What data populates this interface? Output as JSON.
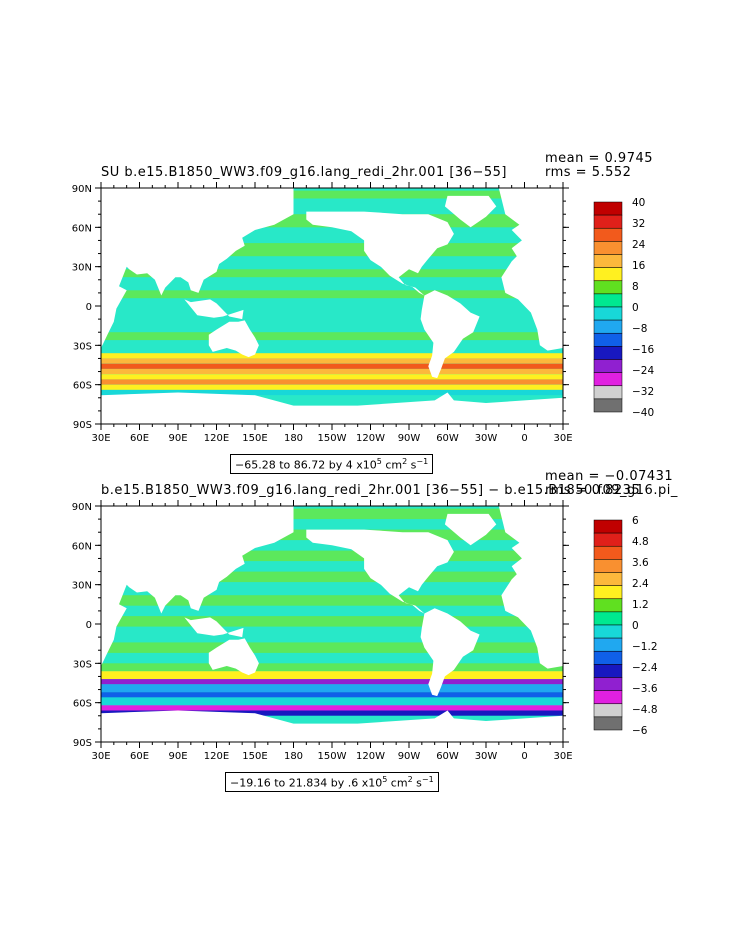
{
  "panels": [
    {
      "id": "top",
      "title": "SU  b.e15.B1850_WW3.f09_g16.lang_redi_2hr.001  [36−55]",
      "mean_label": "mean = 0.9745",
      "rms_label": "rms = 5.552",
      "contour_note": "−65.28 to 86.72 by 4 x10",
      "contour_units": " cm",
      "contour_tail": " s",
      "colorbar_labels": [
        "40",
        "32",
        "24",
        "16",
        "8",
        "0",
        "−8",
        "−16",
        "−24",
        "−32",
        "−40"
      ],
      "colors": [
        "#c00000",
        "#e0201a",
        "#f25a1c",
        "#f99030",
        "#fcb83c",
        "#fff020",
        "#60e020",
        "#00e890",
        "#18d8d8",
        "#20a8f0",
        "#1060e8",
        "#1818c0",
        "#9020d0",
        "#e020e0",
        "#d0d0d0",
        "#707070"
      ]
    },
    {
      "id": "bottom",
      "title": "b.e15.B1850_WW3.f09_g16.lang_redi_2hr.001  [36−55]  −  b.e15.B1850.f09_g16.pi_",
      "mean_label": "mean = −0.07431",
      "rms_label": "rms = 0.8235",
      "contour_note": "−19.16 to 21.834 by .6 x10",
      "contour_units": " cm",
      "contour_tail": " s",
      "colorbar_labels": [
        "6",
        "4.8",
        "3.6",
        "2.4",
        "1.2",
        "0",
        "−1.2",
        "−2.4",
        "−3.6",
        "−4.8",
        "−6"
      ],
      "colors": [
        "#c00000",
        "#e0201a",
        "#f25a1c",
        "#f99030",
        "#fcb83c",
        "#fff020",
        "#60e020",
        "#00e890",
        "#18d8d8",
        "#20a8f0",
        "#1060e8",
        "#1818c0",
        "#9020d0",
        "#e020e0",
        "#d0d0d0",
        "#707070"
      ]
    }
  ],
  "axes": {
    "lat_labels": [
      "90N",
      "60N",
      "30N",
      "0",
      "30S",
      "60S",
      "90S"
    ],
    "lon_labels": [
      "30E",
      "60E",
      "90E",
      "120E",
      "150E",
      "180",
      "150W",
      "120W",
      "90W",
      "60W",
      "30W",
      "0",
      "30E"
    ]
  },
  "colors": {
    "ocean": "#28e8c8",
    "green": "#5ce85c",
    "land": "#ffffff"
  }
}
